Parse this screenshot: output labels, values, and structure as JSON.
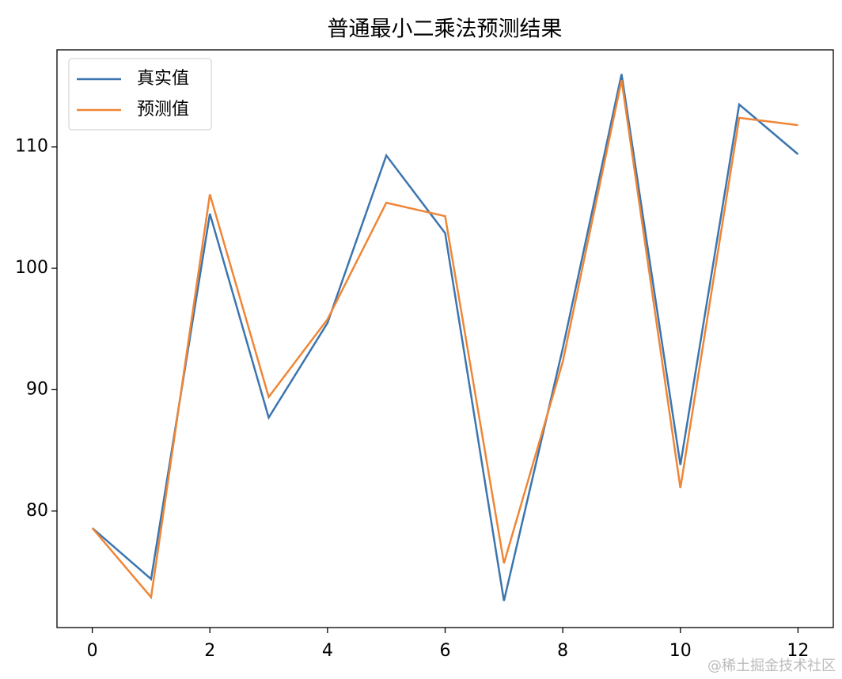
{
  "chart_data": {
    "type": "line",
    "title": "普通最小二乘法预测结果",
    "x": [
      0,
      1,
      2,
      3,
      4,
      5,
      6,
      7,
      8,
      9,
      10,
      11,
      12
    ],
    "series": [
      {
        "name": "真实值",
        "color": "#3b75af",
        "values": [
          78.6,
          74.4,
          104.5,
          87.7,
          95.5,
          109.3,
          102.9,
          72.6,
          93.4,
          116.0,
          83.8,
          113.5,
          109.4
        ]
      },
      {
        "name": "预测值",
        "color": "#ef8636",
        "values": [
          78.6,
          72.9,
          106.1,
          89.4,
          95.8,
          105.4,
          104.3,
          75.7,
          92.3,
          115.5,
          81.9,
          112.4,
          111.8
        ]
      }
    ],
    "xlim": [
      -0.6,
      12.6
    ],
    "xticks": [
      0,
      2,
      4,
      6,
      8,
      10,
      12
    ],
    "ylim": [
      70.4,
      118.0
    ],
    "yticks": [
      80,
      90,
      100,
      110
    ],
    "legend": "upper left",
    "grid": false,
    "watermark": "@稀土掘金技术社区"
  }
}
